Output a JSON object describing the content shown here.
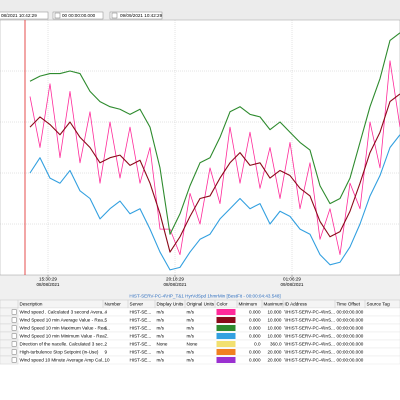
{
  "toolbar": {
    "start": "08/2021 10:42:29",
    "offset": "00 00:00:00.000",
    "end": "09/09/2021 10:42:29"
  },
  "chart_data": {
    "type": "line",
    "subtitle": "HIST-SERV-PC-4\\HP_T&1 HyrVdSpd 1hmrMin [BestFit - 00:00:04:43.548]",
    "xlim": [
      0,
      40
    ],
    "ylim": [
      0,
      10
    ],
    "yticks": [
      2,
      4,
      6,
      8
    ],
    "grid": true,
    "cursor": 2.5,
    "xticks": [
      {
        "value": 4.8,
        "label": [
          "15:30:29",
          "08/08/2021"
        ]
      },
      {
        "value": 17.5,
        "label": [
          "20:18:29",
          "08/08/2021"
        ]
      },
      {
        "value": 29.2,
        "label": [
          "01:06:29",
          "09/08/2021"
        ]
      }
    ],
    "series": [
      {
        "color": "#33a0e0",
        "values": [
          null,
          null,
          null,
          4.0,
          4.6,
          3.8,
          3.6,
          4.1,
          3.3,
          3.0,
          2.2,
          2.6,
          2.9,
          2.4,
          2.6,
          1.8,
          0.9,
          0.2,
          0.3,
          0.9,
          1.4,
          1.6,
          2.2,
          2.6,
          3.0,
          2.6,
          2.8,
          2.0,
          2.5,
          2.3,
          1.8,
          1.6,
          0.8,
          0.4,
          0.5,
          1.1,
          2.0,
          3.1,
          3.9,
          5.0,
          5.5
        ]
      },
      {
        "color": "#ff2a9a",
        "values": [
          null,
          null,
          null,
          7.0,
          5.0,
          7.5,
          4.6,
          7.2,
          4.4,
          6.4,
          3.6,
          6.0,
          3.8,
          5.8,
          3.6,
          5.0,
          1.8,
          1.8,
          0.8,
          3.2,
          2.0,
          4.2,
          2.8,
          5.8,
          3.6,
          5.6,
          3.4,
          5.0,
          3.0,
          5.2,
          2.6,
          4.4,
          1.4,
          2.6,
          0.8,
          3.6,
          2.6,
          6.0,
          4.2,
          8.4,
          5.8
        ]
      },
      {
        "color": "#8b0a1a",
        "values": [
          null,
          null,
          null,
          5.8,
          6.2,
          5.9,
          5.5,
          6.0,
          5.4,
          5.0,
          4.4,
          4.6,
          4.7,
          4.3,
          4.5,
          3.6,
          2.4,
          0.9,
          1.5,
          2.3,
          3.0,
          3.1,
          3.8,
          4.4,
          4.8,
          4.3,
          4.4,
          3.8,
          4.1,
          3.9,
          3.4,
          3.1,
          2.1,
          1.5,
          1.7,
          2.5,
          3.6,
          4.8,
          5.6,
          6.8,
          7.1
        ]
      },
      {
        "color": "#2e8b2e",
        "values": [
          null,
          null,
          null,
          7.6,
          7.8,
          7.9,
          7.9,
          8.0,
          7.9,
          7.2,
          6.8,
          6.6,
          6.5,
          6.3,
          6.5,
          5.8,
          4.2,
          1.6,
          2.4,
          3.5,
          4.4,
          4.6,
          5.4,
          6.4,
          6.6,
          6.3,
          6.2,
          5.7,
          6.0,
          5.6,
          5.2,
          4.9,
          3.5,
          2.8,
          3.0,
          3.8,
          5.2,
          6.6,
          7.7,
          9.2,
          9.5
        ]
      }
    ]
  },
  "table": {
    "columns": [
      "Description",
      "Number",
      "Server",
      "Display Units",
      "Original Units",
      "Color",
      "Minimum",
      "Maximum",
      "ID Address",
      "Time Offset",
      "Source Tag"
    ],
    "rows": [
      {
        "cells": [
          "Wind speed . Calculated 3 second Avera...",
          "4",
          "HIST-SE...",
          "m/s",
          "m/s",
          "0.000",
          "10.000",
          "\\\\HIST-SERV-PC-4\\InS...",
          "00:00:00.000"
        ],
        "color": "#ff2a9a"
      },
      {
        "cells": [
          "Wind Speed 10 min Average Value - Rea...",
          "5",
          "HIST-SE...",
          "m/s",
          "m/s",
          "0.000",
          "10.000",
          "\\\\HIST-SERV-PC-4\\InS...",
          "00:00:00.000"
        ],
        "color": "#8b0a1a"
      },
      {
        "cells": [
          "Wind Speed 10 min Maximum Value - Rea...",
          "6",
          "HIST-SE...",
          "m/s",
          "m/s",
          "0.000",
          "10.000",
          "\\\\HIST-SERV-PC-4\\InS...",
          "00:00:00.000"
        ],
        "color": "#2e8b2e"
      },
      {
        "cells": [
          "Wind Speed 10 min Minimum Value - Rea...",
          "7",
          "HIST-SE...",
          "m/s",
          "m/s",
          "0.000",
          "10.000",
          "\\\\HIST-SERV-PC-4\\InS...",
          "00:00:00.000"
        ],
        "color": "#33a0e0"
      },
      {
        "cells": [
          "Direction of the nacelle. Calculated 3 sec...",
          "2",
          "HIST-SE...",
          "None",
          "None",
          "0.0",
          "360.0",
          "\\\\HIST-SERV-PC-4\\InS...",
          "00:00:00.000"
        ],
        "color": "#f2e070"
      },
      {
        "cells": [
          "High-turbulence Stop Setpoint (in-Use)",
          "9",
          "HIST-SE...",
          "m/s",
          "m/s",
          "0.000",
          "20.000",
          "\\\\HIST-SERV-PC-4\\InS...",
          "00:00:00.000"
        ],
        "color": "#f08020"
      },
      {
        "cells": [
          "Wind speed 10 Minute Average Amp Cal...",
          "10",
          "HIST-SE...",
          "m/s",
          "m/s",
          "0.000",
          "20.000",
          "\\\\HIST-SERV-PC-4\\InS...",
          "00:00:00.000"
        ],
        "color": "#9a30d0"
      }
    ]
  }
}
